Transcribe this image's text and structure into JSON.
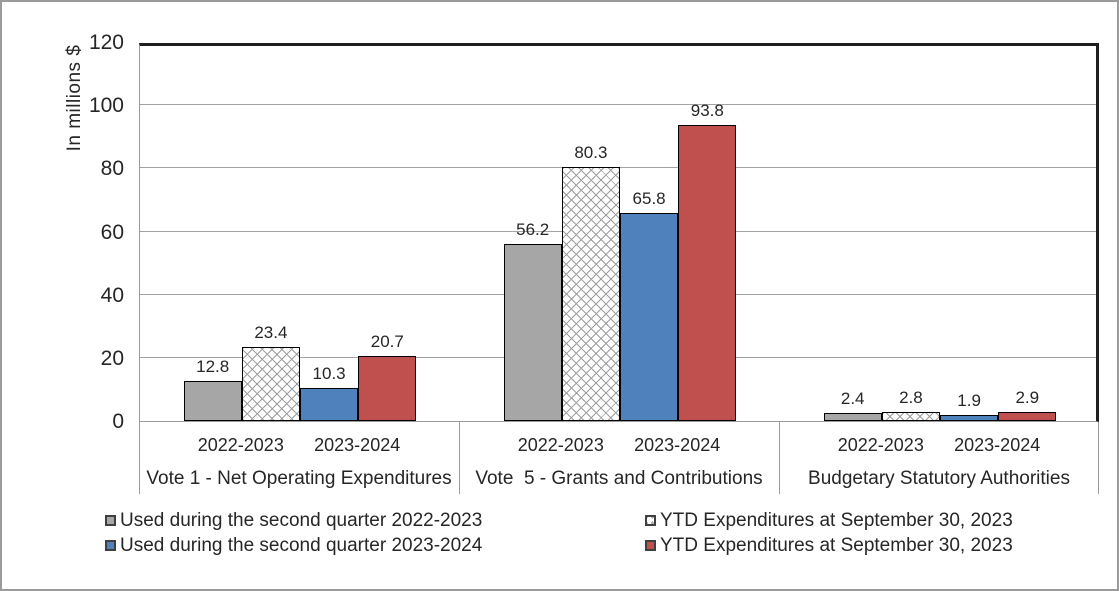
{
  "chart_data": {
    "type": "bar",
    "title": "",
    "xlabel": "",
    "ylabel": "In millions $",
    "ylim": [
      0,
      120
    ],
    "ytick_interval": 20,
    "grid": true,
    "legend_position": "bottom",
    "value_labels": true,
    "groups": [
      "Vote 1 - Net Operating Expenditures",
      "Vote  5 - Grants and Contributions",
      "Budgetary Statutory Authorities"
    ],
    "subcategories": [
      "2022-2023",
      "2023-2024"
    ],
    "series": [
      {
        "name": "Used during the second quarter 2022-2023",
        "subcategory": "2022-2023",
        "color": "#a6a6a6",
        "pattern": "solid",
        "values": [
          12.8,
          56.2,
          2.4
        ]
      },
      {
        "name": "YTD Expenditures at September 30, 2023",
        "subcategory": "2022-2023",
        "color": "#ffffff",
        "pattern": "diagonal-crosshatch",
        "values": [
          23.4,
          80.3,
          2.8
        ]
      },
      {
        "name": "Used during the second quarter 2023-2024",
        "subcategory": "2023-2024",
        "color": "#4f81bd",
        "pattern": "solid",
        "values": [
          10.3,
          65.8,
          1.9
        ]
      },
      {
        "name": "YTD Expenditures at September 30, 2023",
        "subcategory": "2023-2024",
        "color": "#c0504d",
        "pattern": "solid",
        "values": [
          20.7,
          93.8,
          2.9
        ]
      }
    ],
    "colors": {
      "grid": "#a3a3a3",
      "plot_border_dark": "#1f1f1f",
      "axis_gray": "#9b9b9b",
      "text": "#262626"
    }
  }
}
